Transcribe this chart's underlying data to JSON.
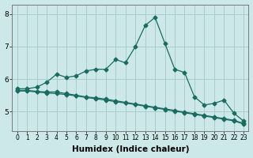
{
  "xlabel": "Humidex (Indice chaleur)",
  "x": [
    0,
    1,
    2,
    3,
    4,
    5,
    6,
    7,
    8,
    9,
    10,
    11,
    12,
    13,
    14,
    15,
    16,
    17,
    18,
    19,
    20,
    21,
    22,
    23
  ],
  "line1": [
    5.7,
    5.7,
    5.75,
    5.9,
    6.15,
    6.05,
    6.1,
    6.25,
    6.3,
    6.3,
    6.6,
    6.5,
    7.0,
    7.65,
    7.9,
    7.1,
    6.3,
    6.2,
    5.45,
    5.2,
    5.25,
    5.35,
    4.95,
    4.7
  ],
  "line2": [
    5.65,
    5.65,
    5.62,
    5.6,
    5.6,
    5.55,
    5.5,
    5.45,
    5.42,
    5.38,
    5.33,
    5.28,
    5.23,
    5.18,
    5.13,
    5.08,
    5.03,
    4.98,
    4.93,
    4.88,
    4.83,
    4.78,
    4.73,
    4.63
  ],
  "line3": [
    5.63,
    5.63,
    5.6,
    5.57,
    5.55,
    5.52,
    5.48,
    5.43,
    5.39,
    5.35,
    5.3,
    5.26,
    5.21,
    5.16,
    5.11,
    5.06,
    5.01,
    4.96,
    4.91,
    4.86,
    4.81,
    4.76,
    4.71,
    4.61
  ],
  "bg_color": "#cce8e8",
  "grid_color": "#aacccc",
  "line_color": "#1a6b60",
  "marker_size": 2.5,
  "ylim_bottom": 4.4,
  "ylim_top": 8.3,
  "yticks": [
    5,
    6,
    7,
    8
  ],
  "xticks": [
    0,
    1,
    2,
    3,
    4,
    5,
    6,
    7,
    8,
    9,
    10,
    11,
    12,
    13,
    14,
    15,
    16,
    17,
    18,
    19,
    20,
    21,
    22,
    23
  ],
  "tick_fontsize": 5.5,
  "xlabel_fontsize": 7.5
}
